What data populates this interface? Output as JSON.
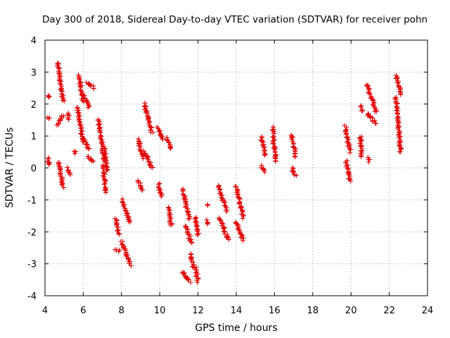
{
  "colors": {
    "points": "#e00000",
    "axes": "#000000",
    "grid": "#a0a0a0"
  },
  "chart_data": {
    "type": "scatter",
    "title": "Day 300 of 2018, Sidereal Day-to-day VTEC variation (SDTVAR) for receiver pohn",
    "xlabel": "GPS time / hours",
    "ylabel": "SDTVAR / TECUs",
    "xlim": [
      4,
      24
    ],
    "ylim": [
      -4,
      4
    ],
    "xticks": [
      4,
      6,
      8,
      10,
      12,
      14,
      16,
      18,
      20,
      22,
      24
    ],
    "yticks": [
      -4,
      -3,
      -2,
      -1,
      0,
      1,
      2,
      3,
      4
    ],
    "xtick_labels": [
      "4",
      "6",
      "8",
      "10",
      "12",
      "14",
      "16",
      "18",
      "20",
      "22",
      "24"
    ],
    "ytick_labels": [
      "-4",
      "-3",
      "-2",
      "-1",
      "0",
      "1",
      "2",
      "3",
      "4"
    ],
    "grid": true,
    "marker": "+",
    "series": [
      {
        "name": "SDTVAR",
        "segments": [
          {
            "x": [
              4.15,
              4.2
            ],
            "y": [
              2.25,
              2.25
            ]
          },
          {
            "x": [
              4.15,
              4.2
            ],
            "y": [
              1.6,
              1.55
            ]
          },
          {
            "x": [
              4.15,
              4.22
            ],
            "y": [
              0.3,
              0.1
            ]
          },
          {
            "x": [
              4.65,
              4.95
            ],
            "y": [
              3.3,
              2.1
            ]
          },
          {
            "x": [
              4.65,
              4.95
            ],
            "y": [
              1.35,
              1.65
            ]
          },
          {
            "x": [
              4.7,
              4.95
            ],
            "y": [
              0.2,
              -0.6
            ]
          },
          {
            "x": [
              5.2,
              5.25
            ],
            "y": [
              1.7,
              1.55
            ]
          },
          {
            "x": [
              5.2,
              5.3
            ],
            "y": [
              0.0,
              -0.2
            ]
          },
          {
            "x": [
              5.55,
              5.6
            ],
            "y": [
              0.5,
              0.45
            ]
          },
          {
            "x": [
              5.75,
              6.0
            ],
            "y": [
              2.9,
              2.1
            ]
          },
          {
            "x": [
              5.7,
              6.0
            ],
            "y": [
              1.9,
              0.8
            ]
          },
          {
            "x": [
              6.0,
              6.3
            ],
            "y": [
              2.3,
              1.9
            ]
          },
          {
            "x": [
              6.0,
              6.3
            ],
            "y": [
              0.9,
              0.6
            ]
          },
          {
            "x": [
              6.2,
              6.6
            ],
            "y": [
              2.65,
              2.5
            ]
          },
          {
            "x": [
              6.25,
              6.55
            ],
            "y": [
              0.35,
              0.2
            ]
          },
          {
            "x": [
              6.8,
              7.1
            ],
            "y": [
              1.5,
              0.2
            ]
          },
          {
            "x": [
              7.0,
              7.2
            ],
            "y": [
              0.1,
              -0.75
            ]
          },
          {
            "x": [
              7.1,
              7.25
            ],
            "y": [
              0.6,
              -0.1
            ]
          },
          {
            "x": [
              7.7,
              7.85
            ],
            "y": [
              -1.6,
              -2.05
            ]
          },
          {
            "x": [
              7.7,
              7.85
            ],
            "y": [
              -2.55,
              -2.6
            ]
          },
          {
            "x": [
              8.0,
              8.45
            ],
            "y": [
              -1.0,
              -1.7
            ]
          },
          {
            "x": [
              8.0,
              8.45
            ],
            "y": [
              -2.3,
              -3.05
            ]
          },
          {
            "x": [
              8.85,
              9.15
            ],
            "y": [
              0.9,
              0.3
            ]
          },
          {
            "x": [
              8.85,
              9.15
            ],
            "y": [
              -0.4,
              -0.7
            ]
          },
          {
            "x": [
              9.2,
              9.6
            ],
            "y": [
              2.0,
              1.1
            ]
          },
          {
            "x": [
              9.2,
              9.6
            ],
            "y": [
              0.5,
              0.0
            ]
          },
          {
            "x": [
              9.9,
              10.15
            ],
            "y": [
              1.25,
              0.9
            ]
          },
          {
            "x": [
              9.95,
              10.1
            ],
            "y": [
              -0.5,
              -0.9
            ]
          },
          {
            "x": [
              10.4,
              10.55
            ],
            "y": [
              0.95,
              0.6
            ]
          },
          {
            "x": [
              10.45,
              10.6
            ],
            "y": [
              -1.25,
              -1.8
            ]
          },
          {
            "x": [
              11.2,
              11.55
            ],
            "y": [
              -0.65,
              -1.6
            ]
          },
          {
            "x": [
              11.35,
              11.65
            ],
            "y": [
              -1.8,
              -2.35
            ]
          },
          {
            "x": [
              11.2,
              11.6
            ],
            "y": [
              -3.25,
              -3.55
            ]
          },
          {
            "x": [
              11.6,
              11.75
            ],
            "y": [
              -2.7,
              -3.1
            ]
          },
          {
            "x": [
              11.85,
              12.0
            ],
            "y": [
              -1.55,
              -2.1
            ]
          },
          {
            "x": [
              11.85,
              12.0
            ],
            "y": [
              -3.1,
              -3.55
            ]
          },
          {
            "x": [
              12.45,
              12.55
            ],
            "y": [
              -1.15,
              -1.2
            ]
          },
          {
            "x": [
              12.5,
              12.55
            ],
            "y": [
              -1.65,
              -1.75
            ]
          },
          {
            "x": [
              13.05,
              13.5
            ],
            "y": [
              -0.55,
              -1.35
            ]
          },
          {
            "x": [
              13.1,
              13.6
            ],
            "y": [
              -1.55,
              -2.25
            ]
          },
          {
            "x": [
              14.0,
              14.35
            ],
            "y": [
              -0.55,
              -1.55
            ]
          },
          {
            "x": [
              14.0,
              14.35
            ],
            "y": [
              -1.7,
              -2.25
            ]
          },
          {
            "x": [
              15.3,
              15.5
            ],
            "y": [
              0.95,
              0.4
            ]
          },
          {
            "x": [
              15.3,
              15.5
            ],
            "y": [
              0.05,
              -0.1
            ]
          },
          {
            "x": [
              15.9,
              16.05
            ],
            "y": [
              1.3,
              0.2
            ]
          },
          {
            "x": [
              16.9,
              17.1
            ],
            "y": [
              1.05,
              0.35
            ]
          },
          {
            "x": [
              16.9,
              17.1
            ],
            "y": [
              0.0,
              -0.25
            ]
          },
          {
            "x": [
              19.7,
              19.95
            ],
            "y": [
              1.3,
              0.5
            ]
          },
          {
            "x": [
              19.75,
              19.95
            ],
            "y": [
              0.2,
              -0.4
            ]
          },
          {
            "x": [
              20.5,
              20.6
            ],
            "y": [
              1.95,
              1.75
            ]
          },
          {
            "x": [
              20.5,
              20.55
            ],
            "y": [
              1.0,
              0.35
            ]
          },
          {
            "x": [
              20.85,
              21.3
            ],
            "y": [
              2.6,
              1.75
            ]
          },
          {
            "x": [
              20.85,
              21.3
            ],
            "y": [
              1.7,
              1.4
            ]
          },
          {
            "x": [
              20.9,
              20.95
            ],
            "y": [
              0.3,
              0.2
            ]
          },
          {
            "x": [
              22.35,
              22.65
            ],
            "y": [
              2.9,
              2.3
            ]
          },
          {
            "x": [
              22.35,
              22.6
            ],
            "y": [
              2.2,
              0.5
            ]
          }
        ]
      }
    ]
  }
}
